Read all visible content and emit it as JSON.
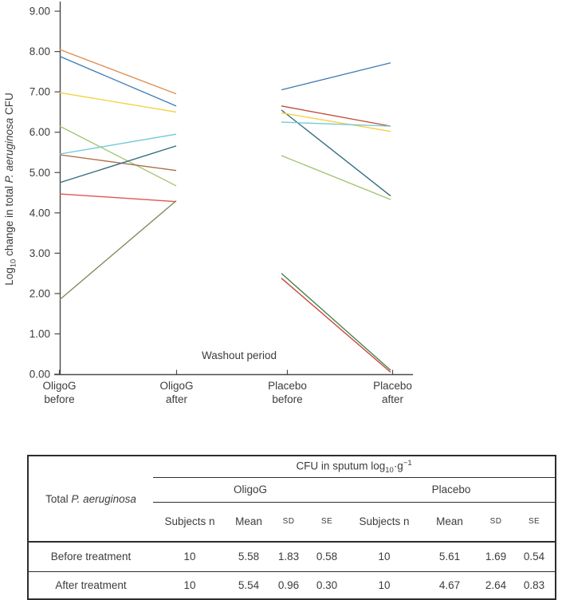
{
  "chart_data": {
    "type": "line",
    "title": "",
    "xlabel": "",
    "ylabel": "Log10 change in total P. aeruginosa CFU",
    "ylabel_parts": {
      "prefix": "Log",
      "sub": "10",
      "mid": " change in total ",
      "italic": "P. aeruginosa",
      "suffix": " CFU"
    },
    "ylim": [
      0,
      9
    ],
    "ytick_labels": [
      "0.00",
      "1.00",
      "2.00",
      "3.00",
      "4.00",
      "5.00",
      "6.00",
      "7.00",
      "8.00",
      "9.00"
    ],
    "categories": [
      "OligoG before",
      "OligoG after",
      "Placebo before",
      "Placebo after"
    ],
    "annotation": "Washout period",
    "grid": false,
    "legend": "none",
    "series": [
      {
        "name": "oligog-subject-1",
        "color": "#df8f52",
        "x": [
          0,
          1
        ],
        "y": [
          8.05,
          6.95
        ]
      },
      {
        "name": "oligog-subject-2",
        "color": "#3f7cb6",
        "x": [
          0,
          1
        ],
        "y": [
          7.88,
          6.65
        ]
      },
      {
        "name": "oligog-subject-3",
        "color": "#f6d044",
        "x": [
          0,
          1
        ],
        "y": [
          6.98,
          6.5
        ]
      },
      {
        "name": "oligog-subject-4",
        "color": "#a3c46e",
        "x": [
          0,
          1
        ],
        "y": [
          6.15,
          4.67
        ]
      },
      {
        "name": "oligog-subject-5",
        "color": "#6fc9d6",
        "x": [
          0,
          1
        ],
        "y": [
          5.46,
          5.95
        ]
      },
      {
        "name": "oligog-subject-6",
        "color": "#ab6e49",
        "x": [
          0,
          1
        ],
        "y": [
          5.44,
          5.05
        ]
      },
      {
        "name": "oligog-subject-7",
        "color": "#326b80",
        "x": [
          0,
          1
        ],
        "y": [
          4.75,
          5.66
        ]
      },
      {
        "name": "oligog-subject-8",
        "color": "#e2554e",
        "x": [
          0,
          1
        ],
        "y": [
          4.47,
          4.28
        ]
      },
      {
        "name": "oligog-subject-9",
        "color": "#7c8a55",
        "x": [
          0,
          1
        ],
        "y": [
          1.85,
          4.3
        ]
      },
      {
        "name": "placebo-subject-1",
        "color": "#3f7cb6",
        "x": [
          2,
          3
        ],
        "y": [
          7.05,
          7.72
        ]
      },
      {
        "name": "placebo-subject-2",
        "color": "#c04c3a",
        "x": [
          2,
          3
        ],
        "y": [
          6.65,
          6.15
        ]
      },
      {
        "name": "placebo-subject-3",
        "color": "#326b80",
        "x": [
          2,
          3
        ],
        "y": [
          6.55,
          4.42
        ]
      },
      {
        "name": "placebo-subject-4",
        "color": "#f6d044",
        "x": [
          2,
          3
        ],
        "y": [
          6.48,
          6.02
        ]
      },
      {
        "name": "placebo-subject-5",
        "color": "#6fc9d6",
        "x": [
          2,
          3
        ],
        "y": [
          6.25,
          6.15
        ]
      },
      {
        "name": "placebo-subject-6",
        "color": "#a3c46e",
        "x": [
          2,
          3
        ],
        "y": [
          5.42,
          4.33
        ]
      },
      {
        "name": "placebo-subject-7",
        "color": "#3f8348",
        "x": [
          2,
          3
        ],
        "y": [
          2.5,
          0.1
        ]
      },
      {
        "name": "placebo-subject-8",
        "color": "#ca3f38",
        "x": [
          2,
          3
        ],
        "y": [
          2.38,
          0.05
        ]
      }
    ]
  },
  "table": {
    "row_group_label": {
      "prefix": "Total ",
      "italic": "P. aeruginosa"
    },
    "span_header": {
      "prefix": "CFU in sputum log",
      "sub": "10",
      "mid": "·g",
      "sup": "−1"
    },
    "groups": [
      "OligoG",
      "Placebo"
    ],
    "col_headers": [
      "Subjects n",
      "Mean",
      "SD",
      "SE"
    ],
    "rows": [
      {
        "label": "Before treatment",
        "oligog": [
          "10",
          "5.58",
          "1.83",
          "0.58"
        ],
        "placebo": [
          "10",
          "5.61",
          "1.69",
          "0.54"
        ]
      },
      {
        "label": "After treatment",
        "oligog": [
          "10",
          "5.54",
          "0.96",
          "0.30"
        ],
        "placebo": [
          "10",
          "4.67",
          "2.64",
          "0.83"
        ]
      }
    ]
  }
}
